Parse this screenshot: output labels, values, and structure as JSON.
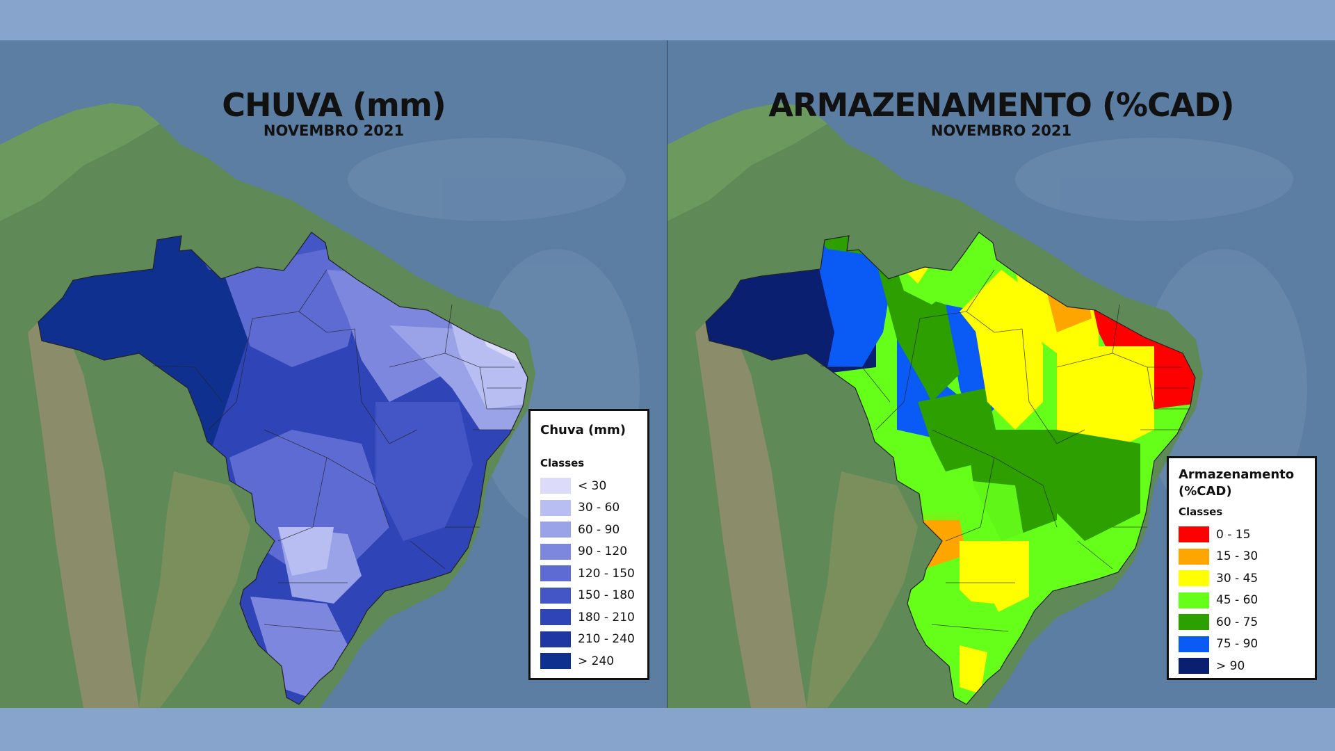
{
  "left_map": {
    "title": "CHUVA (mm)",
    "subtitle": "NOVEMBRO 2021",
    "legend": {
      "title": "Chuva (mm)",
      "subtitle": "Classes",
      "items": [
        {
          "label": "< 30",
          "color": "#dcdcfa"
        },
        {
          "label": "30 - 60",
          "color": "#b8bdf2"
        },
        {
          "label": "60 - 90",
          "color": "#9aa2e8"
        },
        {
          "label": "90 - 120",
          "color": "#7d87dd"
        },
        {
          "label": "120 - 150",
          "color": "#5e6bd2"
        },
        {
          "label": "150 - 180",
          "color": "#4455c6"
        },
        {
          "label": "180 - 210",
          "color": "#2f44b6"
        },
        {
          "label": "210 - 240",
          "color": "#1e37a2"
        },
        {
          "label": "> 240",
          "color": "#10308f"
        }
      ]
    }
  },
  "right_map": {
    "title": "ARMAZENAMENTO (%CAD)",
    "subtitle": "NOVEMBRO 2021",
    "legend": {
      "title_line1": "Armazenamento",
      "title_line2": "(%CAD)",
      "subtitle": "Classes",
      "items": [
        {
          "label": "0 - 15",
          "color": "#ff0000"
        },
        {
          "label": "15 - 30",
          "color": "#ffa500"
        },
        {
          "label": "30 - 45",
          "color": "#ffff00"
        },
        {
          "label": "45 - 60",
          "color": "#66ff1a"
        },
        {
          "label": "60 - 75",
          "color": "#2da000"
        },
        {
          "label": "75 - 90",
          "color": "#0a5af5"
        },
        {
          "label": "> 90",
          "color": "#0a1f70"
        }
      ]
    }
  }
}
